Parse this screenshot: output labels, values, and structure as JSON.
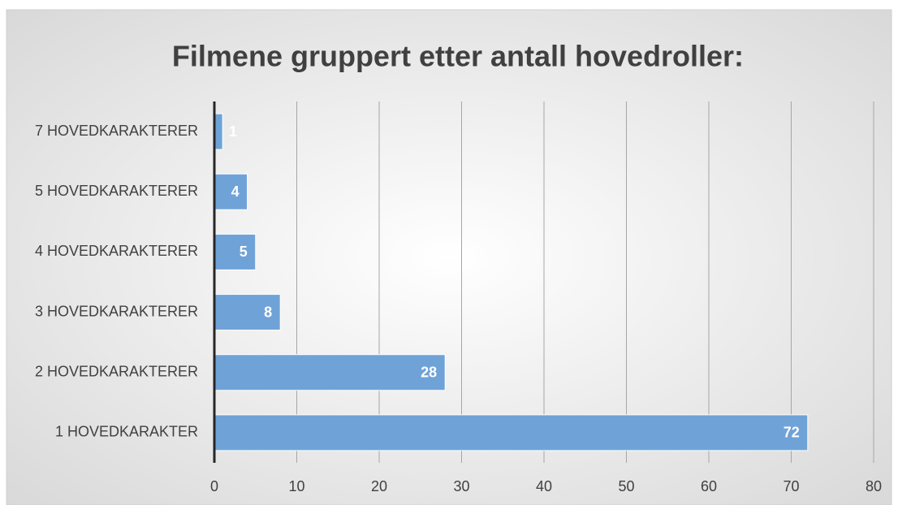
{
  "chart_data": {
    "type": "barh",
    "title": "Filmene gruppert etter antall hovedroller:",
    "categories": [
      "1 HOVEDKARAKTER",
      "2 HOVEDKARAKTERER",
      "3 HOVEDKARAKTERER",
      "4 HOVEDKARAKTERER",
      "5 HOVEDKARAKTERER",
      "7 HOVEDKARAKTERER"
    ],
    "values": [
      72,
      28,
      8,
      5,
      4,
      1
    ],
    "color": "#6fa3d8",
    "xlim": [
      0,
      80
    ],
    "xticks": [
      0,
      10,
      20,
      30,
      40,
      50,
      60,
      70,
      80
    ],
    "grid": true
  }
}
